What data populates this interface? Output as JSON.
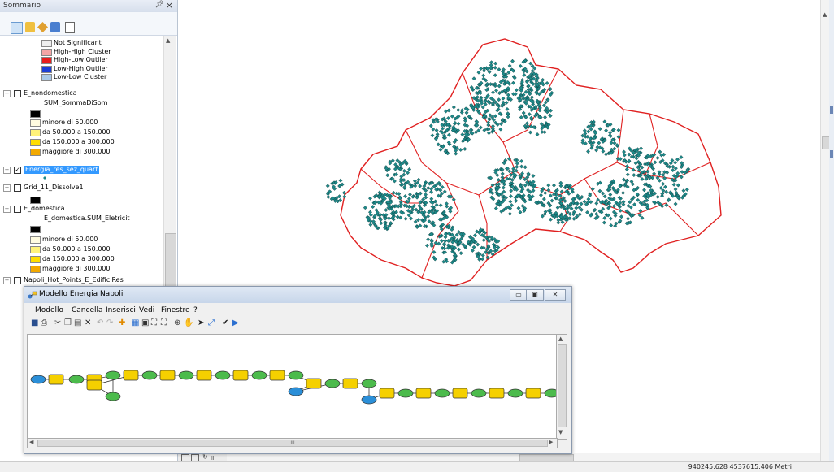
{
  "toc": {
    "title": "Sommario",
    "pin": "\u0002",
    "close": "×",
    "legend_top": [
      {
        "label": "Not Significant",
        "color": "#eeeeee"
      },
      {
        "label": "High-High Cluster",
        "color": "#f4a6a6"
      },
      {
        "label": "High-Low Outlier",
        "color": "#e81e1e"
      },
      {
        "label": "Low-High Outlier",
        "color": "#1c3fd6"
      },
      {
        "label": "Low-Low Cluster",
        "color": "#a9c9e8"
      }
    ],
    "layer1": {
      "name": "E_nondomestica",
      "field": "SUM_SommaDiSom"
    },
    "layer2": {
      "name": "Energia_res_sez_quart"
    },
    "layer3": {
      "name": "Grid_11_Dissolve1"
    },
    "layer4": {
      "name": "E_domestica",
      "field": "E_domestica.SUM_Eletricit"
    },
    "layer5": {
      "name": "Napoli_Hot_Points_E_EdificiRes"
    },
    "classes": [
      {
        "label": "minore di 50.000",
        "color": "#fffbe0"
      },
      {
        "label": "da 50.000 a 150.000",
        "color": "#fff27a"
      },
      {
        "label": "da 150.000 a 300.000",
        "color": "#ffdd00"
      },
      {
        "label": "maggiore di 300.000",
        "color": "#f2a900"
      }
    ]
  },
  "model": {
    "title": "Modello Energia Napoli",
    "menu": [
      "Modello",
      "Cancella",
      "Inserisci",
      "Vedi",
      "Finestre",
      "?"
    ],
    "hscroll_label": "III"
  },
  "status": {
    "coords": "940245.628  4537615.406 Metri"
  },
  "colors": {
    "accent": "#3399ff",
    "map_points": "#1e8a8a",
    "map_boundary": "#e02020"
  }
}
